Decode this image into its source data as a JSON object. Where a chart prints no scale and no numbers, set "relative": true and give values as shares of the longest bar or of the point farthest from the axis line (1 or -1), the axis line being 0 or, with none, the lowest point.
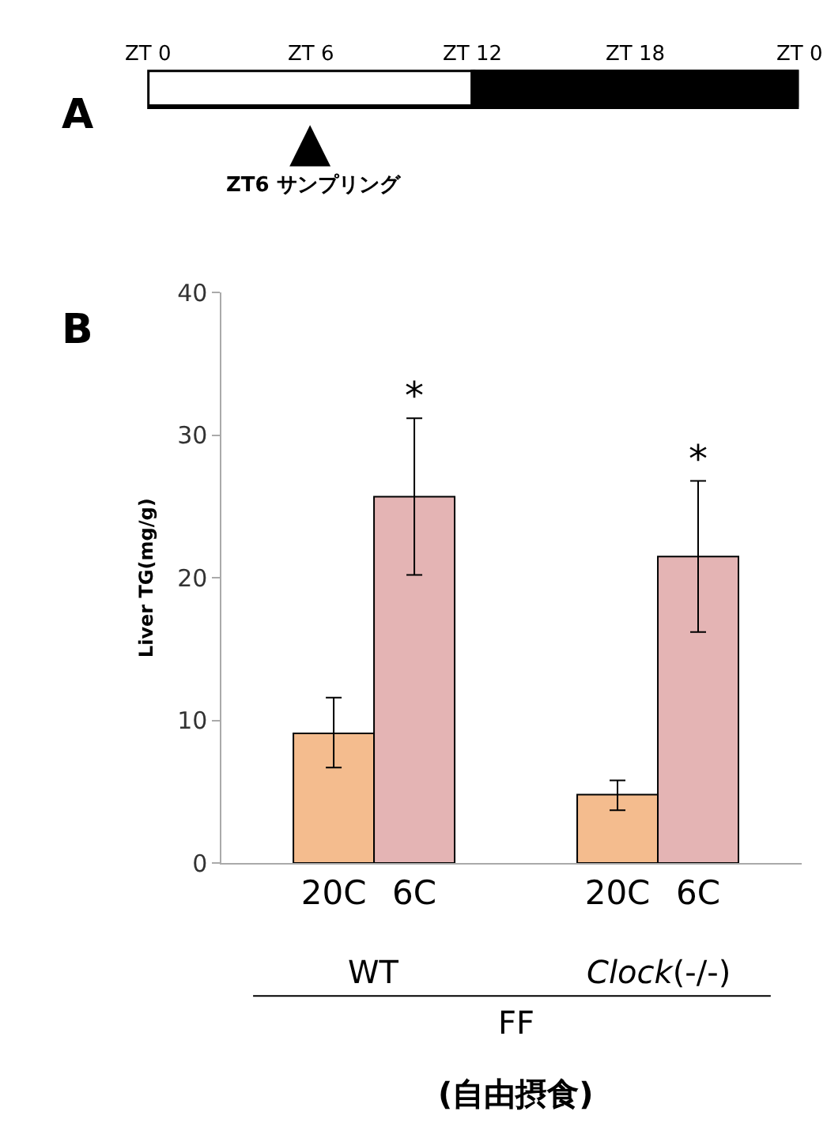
{
  "chart_data": [
    {
      "type": "bar",
      "title": "A",
      "orientation": "horizontal",
      "stacked": true,
      "categories": [
        null
      ],
      "relative": true,
      "series": [
        {
          "color": "#ffffff",
          "values": [
            0.5
          ]
        },
        {
          "color": "#000000",
          "values": [
            0.5
          ]
        }
      ],
      "annotations": [
        "ZT 0",
        "ZT 6",
        "ZT 12",
        "ZT 18",
        "ZT 0",
        "▲",
        "ZT6 サンプリング"
      ]
    },
    {
      "type": "bar",
      "title": "B",
      "ylabel": "Liver TG(mg/g)",
      "categories": [
        "20C",
        "6C",
        "20C",
        "6C"
      ],
      "values": [
        9.1,
        25.7,
        4.8,
        21.5
      ],
      "colors": [
        "#f4bc8e",
        "#e4b4b4",
        "#f4bc8e",
        "#e4b4b4"
      ],
      "errors": [
        [
          6.7,
          11.6
        ],
        [
          20.2,
          31.2
        ],
        [
          3.7,
          5.8
        ],
        [
          16.2,
          26.8
        ]
      ],
      "value_labels": [
        null,
        "*",
        null,
        "*"
      ],
      "ylim": [
        0,
        40
      ],
      "yticks": [
        0,
        10,
        20,
        30,
        40
      ],
      "annotations": [
        "WT",
        "Clock(-/-)",
        "FF",
        "(自由摂食)"
      ]
    }
  ]
}
